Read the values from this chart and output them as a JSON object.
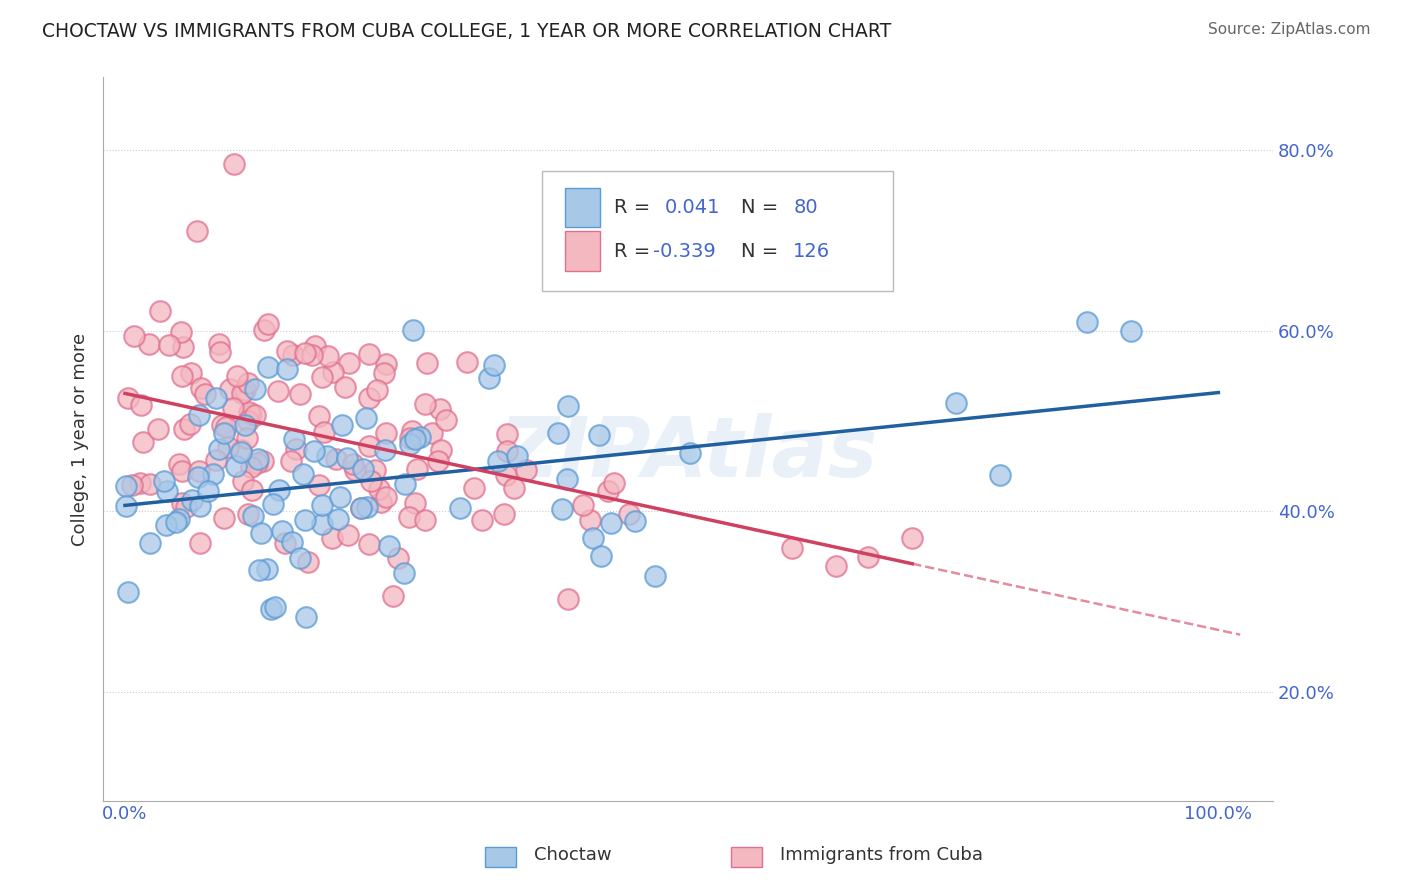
{
  "title": "CHOCTAW VS IMMIGRANTS FROM CUBA COLLEGE, 1 YEAR OR MORE CORRELATION CHART",
  "source": "Source: ZipAtlas.com",
  "ylabel": "College, 1 year or more",
  "xlim": [
    -0.02,
    1.05
  ],
  "ylim": [
    0.08,
    0.88
  ],
  "xticks": [
    0.0,
    1.0
  ],
  "xticklabels": [
    "0.0%",
    "100.0%"
  ],
  "yticks": [
    0.2,
    0.4,
    0.6,
    0.8
  ],
  "yticklabels": [
    "20.0%",
    "40.0%",
    "60.0%",
    "80.0%"
  ],
  "watermark": "ZIPAtlas",
  "blue_color": "#a8c8e8",
  "blue_edge_color": "#5b9bd5",
  "pink_color": "#f4b8c1",
  "pink_edge_color": "#e07090",
  "blue_line_color": "#2060a0",
  "pink_line_color": "#d04060",
  "background_color": "#ffffff",
  "grid_color": "#cccccc",
  "blue_r": 0.041,
  "pink_r": -0.339,
  "blue_n": 80,
  "pink_n": 126,
  "tick_color": "#4466cc",
  "legend_text_color": "#4466cc",
  "legend_label_color": "#333333"
}
